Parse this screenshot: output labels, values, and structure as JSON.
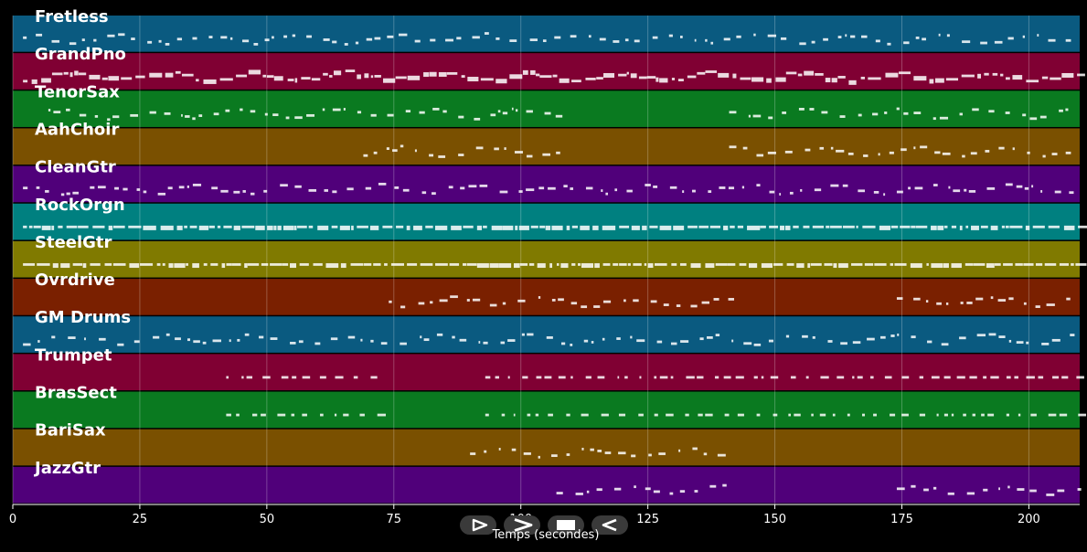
{
  "chart_data": {
    "type": "heatmap",
    "title": "",
    "xlabel": "Temps (secondes)",
    "ylabel": "",
    "xlim": [
      0,
      210
    ],
    "xticks": [
      0,
      25,
      50,
      75,
      100,
      125,
      150,
      175,
      200
    ],
    "grid": true,
    "tracks": [
      {
        "name": "Fretless",
        "color": "#0a5a80",
        "active": [
          [
            2,
            210
          ]
        ],
        "melodic": true
      },
      {
        "name": "GrandPno",
        "color": "#800033",
        "active": [
          [
            2,
            210
          ]
        ],
        "melodic": true,
        "dense": true
      },
      {
        "name": "TenorSax",
        "color": "#0a7a20",
        "active": [
          [
            7,
            107
          ],
          [
            141,
            208
          ]
        ],
        "melodic": true
      },
      {
        "name": "AahChoir",
        "color": "#7a5000",
        "active": [
          [
            69,
            107
          ],
          [
            141,
            208
          ]
        ],
        "melodic": true
      },
      {
        "name": "CleanGtr",
        "color": "#50007a",
        "active": [
          [
            2,
            210
          ]
        ],
        "melodic": true
      },
      {
        "name": "RockOrgn",
        "color": "#008080",
        "active": [
          [
            2,
            210
          ]
        ],
        "melodic": false,
        "dense": true
      },
      {
        "name": "SteelGtr",
        "color": "#807a00",
        "active": [
          [
            2,
            210
          ]
        ],
        "melodic": false,
        "dense": true
      },
      {
        "name": "Ovrdrive",
        "color": "#7a2000",
        "active": [
          [
            74,
            141
          ],
          [
            174,
            210
          ]
        ],
        "melodic": true
      },
      {
        "name": "GM Drums",
        "color": "#0a5a80",
        "active": [
          [
            2,
            210
          ]
        ],
        "melodic": true
      },
      {
        "name": "Trumpet",
        "color": "#800033",
        "active": [
          [
            42,
            74
          ],
          [
            93,
            210
          ]
        ],
        "melodic": false
      },
      {
        "name": "BrasSect",
        "color": "#0a7a20",
        "active": [
          [
            42,
            74
          ],
          [
            93,
            210
          ]
        ],
        "melodic": false
      },
      {
        "name": "BariSax",
        "color": "#7a5000",
        "active": [
          [
            90,
            141
          ]
        ],
        "melodic": true
      },
      {
        "name": "JazzGtr",
        "color": "#50007a",
        "active": [
          [
            107,
            141
          ],
          [
            174,
            210
          ]
        ],
        "melodic": true
      }
    ]
  },
  "controls": {
    "play_icon": "play-icon",
    "forward_icon": "fast-forward-icon",
    "stop_icon": "stop-icon",
    "rewind_icon": "rewind-icon"
  }
}
